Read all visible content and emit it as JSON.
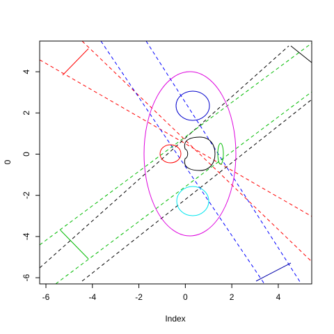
{
  "chart_data": {
    "type": "plot",
    "xlabel": "Index",
    "ylabel": "0",
    "xlim": [
      -6.27,
      5.44
    ],
    "ylim": [
      -6.3,
      5.49
    ],
    "xticks": [
      -6,
      -4,
      -2,
      0,
      2,
      4
    ],
    "yticks": [
      -6,
      -4,
      -2,
      0,
      2,
      4
    ]
  }
}
